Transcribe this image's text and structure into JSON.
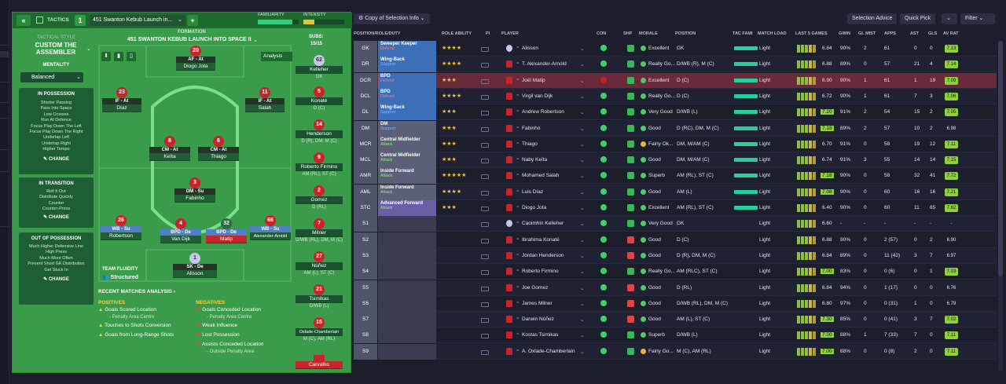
{
  "tactics": {
    "tab_label": "TACTICS",
    "slot_number": "1",
    "tactic_name": "451 Swanton Kebub Launch in...",
    "familiarity_label": "FAMILIARITY",
    "intensity_label": "INTENSITY",
    "style_header": "TACTICAL STYLE",
    "style_name": "CUSTOM THE ASSEMBLER",
    "mentality_label": "MENTALITY",
    "mentality_value": "Balanced",
    "in_possession_title": "IN POSSESSION",
    "in_possession_items": [
      "Shorter Passing",
      "Pass Into Space",
      "Low Crosses",
      "Run At Defence",
      "Focus Play Down The Left",
      "Focus Play Down The Right",
      "Underlap Left",
      "Underlap Right",
      "Higher Tempo"
    ],
    "in_transition_title": "IN TRANSITION",
    "in_transition_items": [
      "Roll It Out",
      "Distribute Quickly",
      "Counter",
      "Counter-Press"
    ],
    "out_possession_title": "OUT OF POSSESSION",
    "out_possession_items": [
      "Much Higher Defensive Line",
      "High Press",
      "Much More Often",
      "Prevent Short GK Distribution",
      "Get Stuck In"
    ],
    "change_label": "CHANGE",
    "formation_label": "FORMATION",
    "formation_name": "451 SWANTON KEBUB LAUNCH INTO SPACE II",
    "analysis_label": "Analysis",
    "subs_label": "SUBS:",
    "subs_count": "15/15",
    "team_fluidity_label": "TEAM FLUIDITY",
    "team_fluidity_value": "Structured",
    "recent_analysis": "RECENT MATCHES ANALYSIS",
    "positives_label": "POSITIVES",
    "positives": [
      "Goals Scored Location",
      "- Penalty Area Centre",
      "Touches to Shots Conversion",
      "Goals from Long-Range Shots"
    ],
    "negatives_label": "NEGATIVES",
    "negatives": [
      "Goals Conceded Location",
      "- Penalty Area Centre",
      "Weak Influence",
      "Lost Possession",
      "Assists Conceded Location",
      "- Outside Penalty Area"
    ],
    "pitch_players": [
      {
        "num": "20",
        "role": "AF - At",
        "name": "Diogo Jota"
      },
      {
        "num": "23",
        "role": "IF - At",
        "name": "Díaz"
      },
      {
        "num": "11",
        "role": "IF - At",
        "name": "Salah"
      },
      {
        "num": "8",
        "role": "CM - At",
        "name": "Keïta"
      },
      {
        "num": "6",
        "role": "CM - At",
        "name": "Thiago"
      },
      {
        "num": "3",
        "role": "DM - Su",
        "name": "Fabinho"
      },
      {
        "num": "26",
        "role": "WB - Su",
        "name": "Robertson"
      },
      {
        "num": "4",
        "role": "BPD - De",
        "name": "Van Dijk"
      },
      {
        "num": "32",
        "role": "BPD - De",
        "name": "Matip"
      },
      {
        "num": "66",
        "role": "WB - Su",
        "name": "Alexander-Arnold"
      },
      {
        "num": "1",
        "role": "SK - De",
        "name": "Alisson"
      }
    ],
    "subs": [
      {
        "num": "62",
        "name": "Kelleher",
        "pos": "GK"
      },
      {
        "num": "5",
        "name": "Konaté",
        "pos": "D (C)"
      },
      {
        "num": "14",
        "name": "Henderson",
        "pos": "D (R), DM, M (C)"
      },
      {
        "num": "9",
        "name": "Roberto Firmino",
        "pos": "AM (RL), ST (C)"
      },
      {
        "num": "2",
        "name": "Gomez",
        "pos": "D (RL)"
      },
      {
        "num": "7",
        "name": "Milner",
        "pos": "D/WB (RL), DM, M (C)"
      },
      {
        "num": "27",
        "name": "Núñez",
        "pos": "AM (L), ST (C)"
      },
      {
        "num": "21",
        "name": "Tsimikas",
        "pos": "D/WB (L)"
      },
      {
        "num": "15",
        "name": "Oxlade-Chamberlain",
        "pos": "M (C), AM (RL)"
      },
      {
        "num": "",
        "name": "Carvalho",
        "pos": ""
      }
    ]
  },
  "squad": {
    "copy_label": "Copy of Selection Info",
    "selection_advice": "Selection Advice",
    "quick_pick": "Quick Pick",
    "filter": "Filter",
    "columns": [
      "POSITION/ROLE/DUTY",
      "ROLE ABILITY",
      "PI",
      "PLAYER",
      "CON",
      "SHP",
      "MORALE",
      "POSITION",
      "TAC FAMI",
      "MATCH LOAD",
      "LAST 5 GAMES",
      "GWIN",
      "GL MIST",
      "APPS",
      "AST",
      "GLS",
      "AV RAT"
    ],
    "rows": [
      {
        "pos": "GK",
        "role": "Sweeper Keeper",
        "duty": "Defend",
        "stars": "★★★★",
        "player": "Alisson",
        "morale": "Excellent",
        "position": "GK",
        "load": "Light",
        "form": "6.84",
        "gwin": "90%",
        "glmist": "2",
        "apps": "61",
        "ast": "0",
        "gls": "0",
        "avrat": "7.13"
      },
      {
        "pos": "DR",
        "role": "Wing-Back",
        "duty": "Support",
        "stars": "★★★★",
        "player": "T. Alexander-Arnold",
        "morale": "Really Go...",
        "position": "D/WB (R), M (C)",
        "load": "Light",
        "form": "6.88",
        "gwin": "89%",
        "glmist": "0",
        "apps": "57",
        "ast": "21",
        "gls": "4",
        "avrat": "7.14"
      },
      {
        "pos": "DCR",
        "role": "BPD",
        "duty": "Defend",
        "stars": "★★★",
        "player": "Joël Matip",
        "morale": "Excellent",
        "position": "D (C)",
        "load": "Light",
        "form": "6.90",
        "gwin": "90%",
        "glmist": "1",
        "apps": "61",
        "ast": "1",
        "gls": "19",
        "avrat": "7.09"
      },
      {
        "pos": "DCL",
        "role": "BPD",
        "duty": "Defend",
        "stars": "★★★★",
        "player": "Virgil van Dijk",
        "morale": "Really Go...",
        "position": "D (C)",
        "load": "Light",
        "form": "6.72",
        "gwin": "90%",
        "glmist": "1",
        "apps": "61",
        "ast": "7",
        "gls": "3",
        "avrat": "7.06"
      },
      {
        "pos": "DL",
        "role": "Wing-Back",
        "duty": "Support",
        "stars": "★★★",
        "player": "Andrew Robertson",
        "morale": "Very Good",
        "position": "D/WB (L)",
        "load": "Light",
        "form": "7.20",
        "gwin": "91%",
        "glmist": "2",
        "apps": "54",
        "ast": "15",
        "gls": "2",
        "avrat": "7.05"
      },
      {
        "pos": "DM",
        "role": "DM",
        "duty": "Support",
        "stars": "★★★",
        "player": "Fabinho",
        "morale": "Good",
        "position": "D (RC), DM, M (C)",
        "load": "Light",
        "form": "7.18",
        "gwin": "89%",
        "glmist": "2",
        "apps": "57",
        "ast": "10",
        "gls": "2",
        "avrat": "6.98"
      },
      {
        "pos": "MCR",
        "role": "Central Midfielder",
        "duty": "Attack",
        "stars": "★★★",
        "player": "Thiago",
        "morale": "Fairly Ok...",
        "position": "DM, M/AM (C)",
        "load": "Light",
        "form": "6.70",
        "gwin": "91%",
        "glmist": "0",
        "apps": "58",
        "ast": "19",
        "gls": "12",
        "avrat": "7.11"
      },
      {
        "pos": "MCL",
        "role": "Central Midfielder",
        "duty": "Attack",
        "stars": "★★★",
        "player": "Naby Keïta",
        "morale": "Good",
        "position": "DM, M/AM (C)",
        "load": "Light",
        "form": "6.74",
        "gwin": "91%",
        "glmist": "3",
        "apps": "55",
        "ast": "14",
        "gls": "14",
        "avrat": "7.15"
      },
      {
        "pos": "AMR",
        "role": "Inside Forward",
        "duty": "Attack",
        "stars": "★★★★★",
        "player": "Mohamed Salah",
        "morale": "Superb",
        "position": "AM (RL), ST (C)",
        "load": "Light",
        "form": "7.18",
        "gwin": "90%",
        "glmist": "0",
        "apps": "58",
        "ast": "32",
        "gls": "41",
        "avrat": "7.72"
      },
      {
        "pos": "AML",
        "role": "Inside Forward",
        "duty": "Attack",
        "stars": "★★★★",
        "player": "Luis Díaz",
        "morale": "Good",
        "position": "AM (L)",
        "load": "Light",
        "form": "7.08",
        "gwin": "90%",
        "glmist": "0",
        "apps": "60",
        "ast": "16",
        "gls": "16",
        "avrat": "7.21"
      },
      {
        "pos": "STC",
        "role": "Advanced Forward",
        "duty": "Attack",
        "stars": "★★★",
        "player": "Diogo Jota",
        "morale": "Excellent",
        "position": "AM (RL), ST (C)",
        "load": "Light",
        "form": "6.40",
        "gwin": "90%",
        "glmist": "0",
        "apps": "60",
        "ast": "11",
        "gls": "65",
        "avrat": "7.62"
      },
      {
        "pos": "S1",
        "role": "",
        "duty": "",
        "stars": "",
        "player": "Caoimhin Kelleher",
        "morale": "Very Good",
        "position": "GK",
        "load": "Light",
        "form": "6.60",
        "gwin": "-",
        "glmist": "-",
        "apps": "-",
        "ast": "-",
        "gls": "-",
        "avrat": "-"
      },
      {
        "pos": "S2",
        "role": "",
        "duty": "",
        "stars": "",
        "player": "Ibrahima Konaté",
        "morale": "Good",
        "position": "D (C)",
        "load": "Light",
        "form": "6.88",
        "gwin": "90%",
        "glmist": "0",
        "apps": "2 (57)",
        "ast": "0",
        "gls": "2",
        "avrat": "6.90"
      },
      {
        "pos": "S3",
        "role": "",
        "duty": "",
        "stars": "",
        "player": "Jordan Henderson",
        "morale": "Good",
        "position": "D (R), DM, M (C)",
        "load": "Light",
        "form": "6.84",
        "gwin": "89%",
        "glmist": "0",
        "apps": "11 (42)",
        "ast": "3",
        "gls": "7",
        "avrat": "6.97"
      },
      {
        "pos": "S4",
        "role": "",
        "duty": "",
        "stars": "",
        "player": "Roberto Firmino",
        "morale": "Really Go...",
        "position": "AM (RLC), ST (C)",
        "load": "Light",
        "form": "7.00",
        "gwin": "83%",
        "glmist": "0",
        "apps": "0 (6)",
        "ast": "0",
        "gls": "1",
        "avrat": "7.03"
      },
      {
        "pos": "S5",
        "role": "",
        "duty": "",
        "stars": "",
        "player": "Joe Gomez",
        "morale": "Good",
        "position": "D (RL)",
        "load": "Light",
        "form": "6.84",
        "gwin": "94%",
        "glmist": "0",
        "apps": "1 (17)",
        "ast": "0",
        "gls": "0",
        "avrat": "6.76"
      },
      {
        "pos": "S6",
        "role": "",
        "duty": "",
        "stars": "",
        "player": "James Milner",
        "morale": "Good",
        "position": "D/WB (RL), DM, M (C)",
        "load": "Light",
        "form": "6.80",
        "gwin": "97%",
        "glmist": "0",
        "apps": "0 (31)",
        "ast": "1",
        "gls": "0",
        "avrat": "6.79"
      },
      {
        "pos": "S7",
        "role": "",
        "duty": "",
        "stars": "",
        "player": "Darwin Núñez",
        "morale": "Good",
        "position": "AM (L), ST (C)",
        "load": "Light",
        "form": "7.30",
        "gwin": "85%",
        "glmist": "0",
        "apps": "0 (41)",
        "ast": "3",
        "gls": "7",
        "avrat": "7.02"
      },
      {
        "pos": "S8",
        "role": "",
        "duty": "",
        "stars": "",
        "player": "Kostas Tsimikas",
        "morale": "Superb",
        "position": "D/WB (L)",
        "load": "Light",
        "form": "7.00",
        "gwin": "88%",
        "glmist": "1",
        "apps": "7 (33)",
        "ast": "7",
        "gls": "0",
        "avrat": "7.11"
      },
      {
        "pos": "S9",
        "role": "",
        "duty": "",
        "stars": "",
        "player": "A. Oxlade-Chamberlain",
        "morale": "Fairly Go...",
        "position": "M (C), AM (RL)",
        "load": "Light",
        "form": "7.00",
        "gwin": "88%",
        "glmist": "0",
        "apps": "0 (8)",
        "ast": "2",
        "gls": "0",
        "avrat": "7.11"
      }
    ]
  },
  "colors": {
    "accent_green": "#3a9b4b",
    "defend": "#3d7ac7",
    "support": "#3d7ac7",
    "attack": "#5b5f78",
    "stc": "#6a5ea6",
    "selected_row": "#6a2a3a"
  }
}
